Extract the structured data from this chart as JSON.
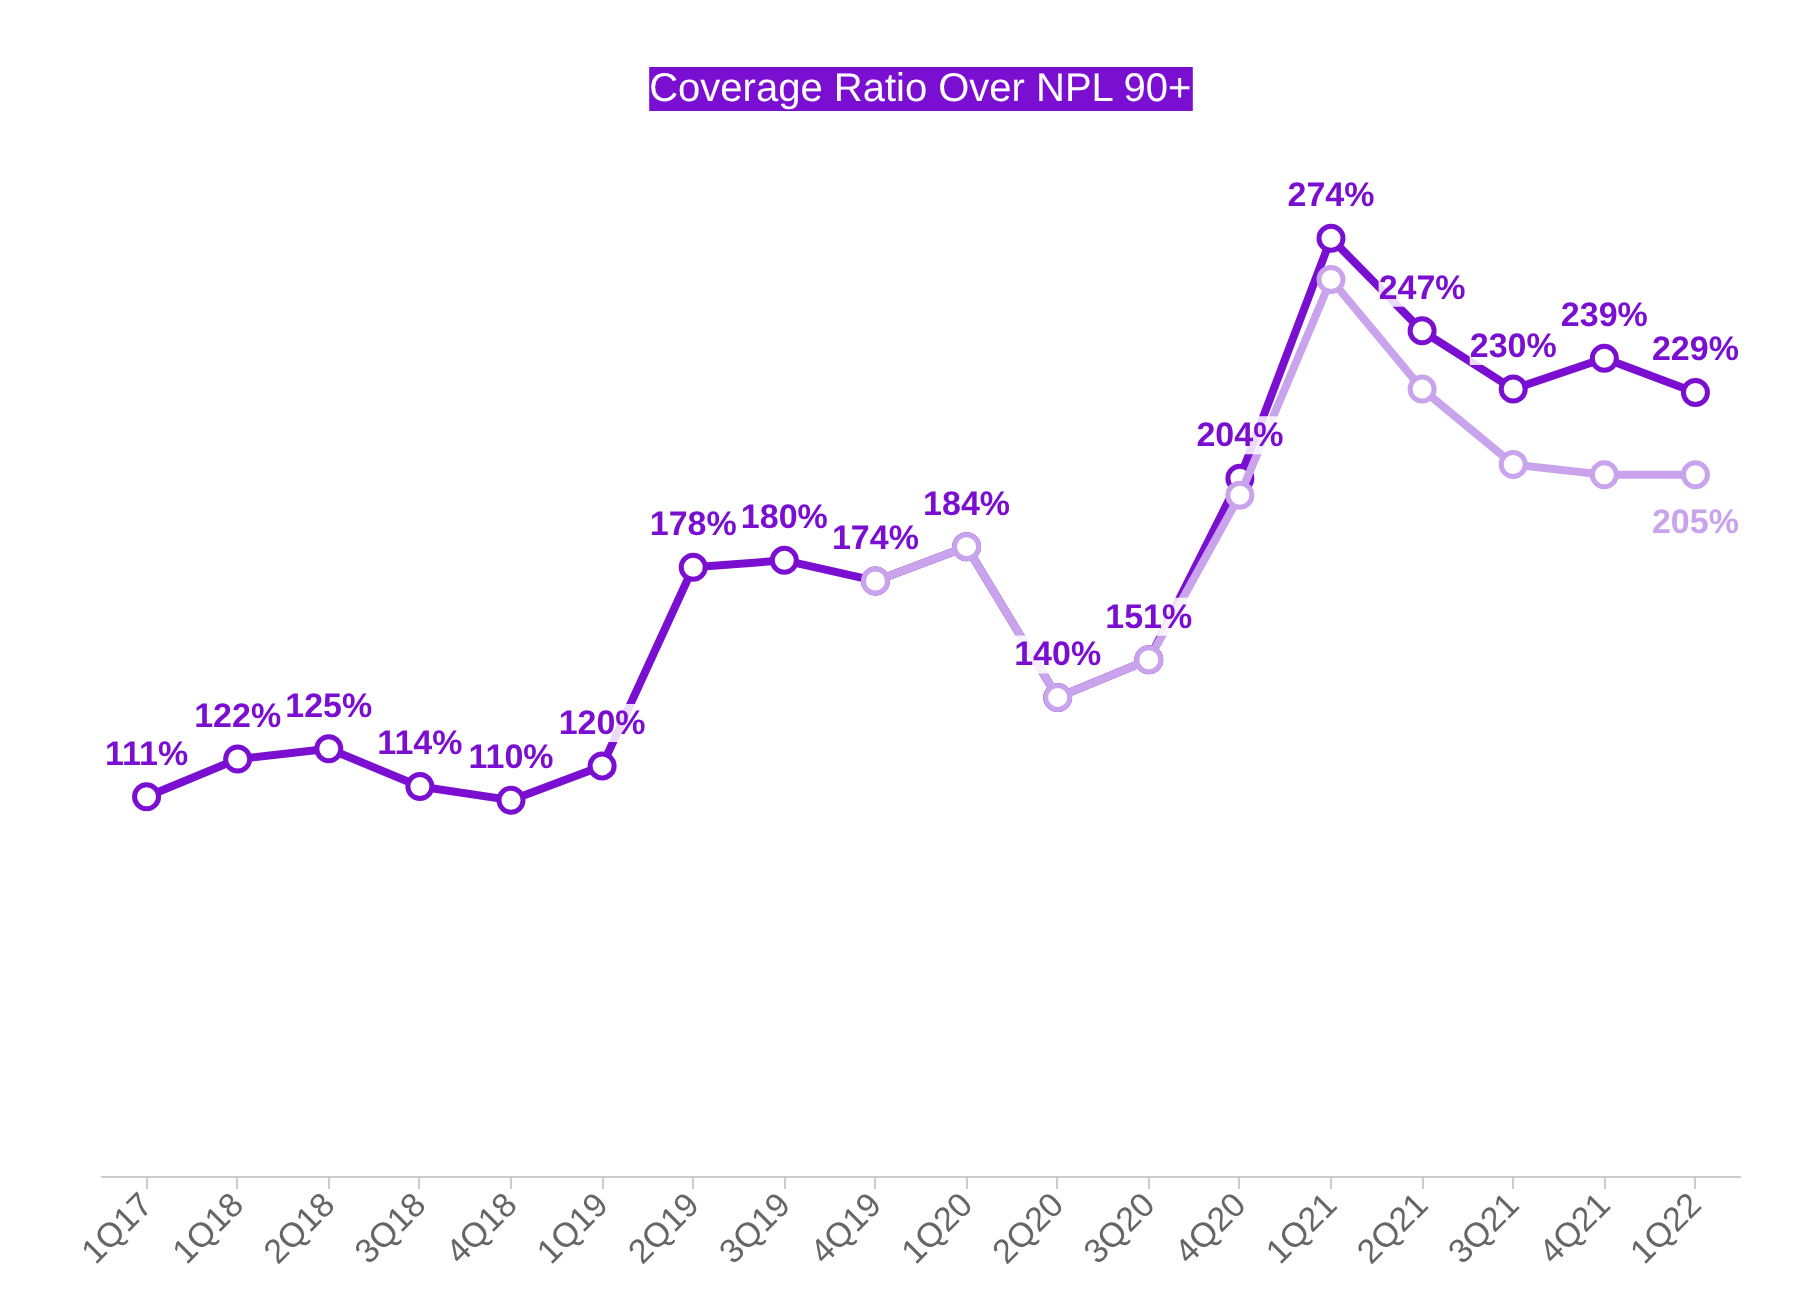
{
  "chart_data": {
    "type": "line",
    "title": "Coverage Ratio Over NPL 90+",
    "categories": [
      "1Q17",
      "1Q18",
      "2Q18",
      "3Q18",
      "4Q18",
      "1Q19",
      "2Q19",
      "3Q19",
      "4Q19",
      "1Q20",
      "2Q20",
      "3Q20",
      "4Q20",
      "1Q21",
      "2Q21",
      "3Q21",
      "4Q21",
      "1Q22"
    ],
    "marker": "circle",
    "line_style": "solid",
    "grid": false,
    "tick_labels": "x",
    "series": [
      {
        "color": "#7a0fd1",
        "values": [
          111,
          122,
          125,
          114,
          110,
          120,
          178,
          180,
          174,
          184,
          140,
          151,
          204,
          274,
          247,
          230,
          239,
          229
        ],
        "value_labels": [
          "111%",
          "122%",
          "125%",
          "114%",
          "110%",
          "120%",
          "178%",
          "180%",
          "174%",
          "184%",
          "140%",
          "151%",
          "204%",
          "274%",
          "247%",
          "230%",
          "239%",
          "229%"
        ]
      },
      {
        "color": "#c9a3ec",
        "values": [
          null,
          null,
          null,
          null,
          null,
          null,
          null,
          null,
          174,
          184,
          140,
          151,
          199,
          262,
          230,
          208,
          205,
          205
        ],
        "value_labels": [
          null,
          null,
          null,
          null,
          null,
          null,
          null,
          null,
          null,
          null,
          null,
          null,
          null,
          null,
          null,
          null,
          null,
          "205%"
        ]
      }
    ]
  }
}
